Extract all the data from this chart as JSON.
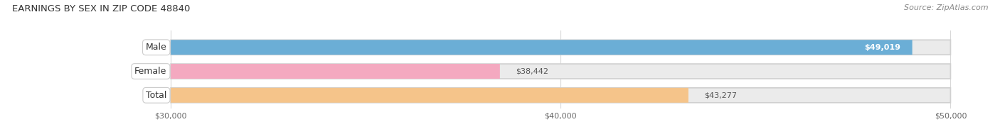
{
  "title": "EARNINGS BY SEX IN ZIP CODE 48840",
  "source": "Source: ZipAtlas.com",
  "categories": [
    "Male",
    "Female",
    "Total"
  ],
  "values": [
    49019,
    38442,
    43277
  ],
  "bar_colors": [
    "#6baed6",
    "#f4a9c0",
    "#f5c48a"
  ],
  "label_texts": [
    "$49,019",
    "$38,442",
    "$43,277"
  ],
  "label_color_inside": [
    "white",
    "#555555",
    "#555555"
  ],
  "xmin": 30000,
  "xmax": 50000,
  "xticks": [
    30000,
    40000,
    50000
  ],
  "xtick_labels": [
    "$30,000",
    "$40,000",
    "$50,000"
  ],
  "background_color": "#ffffff",
  "bar_bg_color": "#ebebeb",
  "title_fontsize": 9.5,
  "source_fontsize": 8,
  "label_fontsize": 8,
  "category_fontsize": 9
}
